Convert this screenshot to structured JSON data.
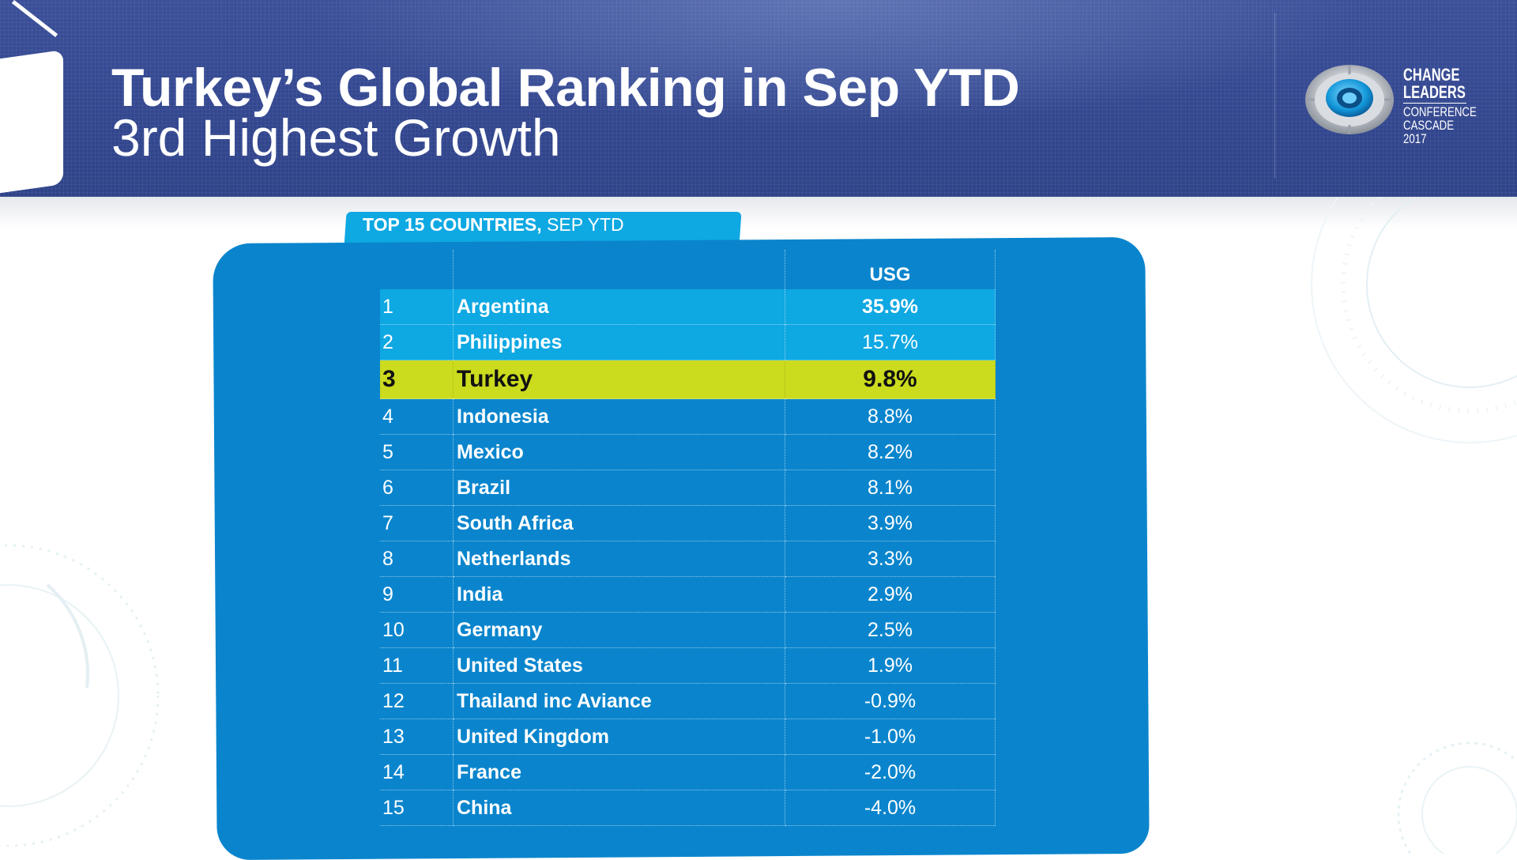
{
  "header": {
    "title": "Turkey’s Global Ranking in Sep YTD",
    "subtitle": "3rd Highest Growth"
  },
  "logo": {
    "line1": "CHANGE",
    "line2": "LEADERS",
    "line3": "CONFERENCE",
    "line4": "CASCADE",
    "line5": "2017",
    "icon": "target-eye-icon"
  },
  "table": {
    "tab_bold": "TOP 15 COUNTRIES,",
    "tab_rest": " SEP YTD",
    "column_header": "USG",
    "highlight_color": "#cbdb1e",
    "rows": [
      {
        "rank": "1",
        "country": "Argentina",
        "usg": "35.9%"
      },
      {
        "rank": "2",
        "country": "Philippines",
        "usg": "15.7%"
      },
      {
        "rank": "3",
        "country": "Turkey",
        "usg": "9.8%"
      },
      {
        "rank": "4",
        "country": "Indonesia",
        "usg": "8.8%"
      },
      {
        "rank": "5",
        "country": "Mexico",
        "usg": "8.2%"
      },
      {
        "rank": "6",
        "country": "Brazil",
        "usg": "8.1%"
      },
      {
        "rank": "7",
        "country": "South Africa",
        "usg": "3.9%"
      },
      {
        "rank": "8",
        "country": "Netherlands",
        "usg": "3.3%"
      },
      {
        "rank": "9",
        "country": "India",
        "usg": "2.9%"
      },
      {
        "rank": "10",
        "country": "Germany",
        "usg": "2.5%"
      },
      {
        "rank": "11",
        "country": "United States",
        "usg": "1.9%"
      },
      {
        "rank": "12",
        "country": "Thailand inc Aviance",
        "usg": "-0.9%"
      },
      {
        "rank": "13",
        "country": "United Kingdom",
        "usg": "-1.0%"
      },
      {
        "rank": "14",
        "country": "France",
        "usg": "-2.0%"
      },
      {
        "rank": "15",
        "country": "China",
        "usg": "-4.0%"
      }
    ]
  }
}
